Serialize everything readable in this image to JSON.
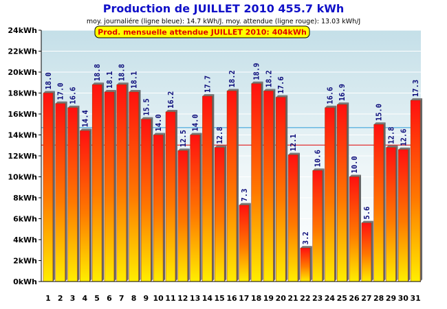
{
  "chart_data": {
    "type": "bar",
    "title": "Production de JUILLET 2010  455.7 kWh",
    "subtitle": "moy. journaliére (ligne bleue): 14.7 kWh/J.   moy. attendue (ligne rouge): 13.03 kWh/J",
    "annotation": "Prod. mensuelle attendue JUILLET 2010: 404kWh",
    "categories": [
      "1",
      "2",
      "3",
      "4",
      "5",
      "6",
      "7",
      "8",
      "9",
      "10",
      "11",
      "12",
      "13",
      "14",
      "15",
      "16",
      "17",
      "18",
      "19",
      "20",
      "21",
      "22",
      "23",
      "24",
      "25",
      "26",
      "27",
      "28",
      "29",
      "30",
      "31"
    ],
    "values": [
      18.0,
      17.0,
      16.6,
      14.4,
      18.8,
      18.1,
      18.8,
      18.1,
      15.5,
      14.0,
      16.2,
      12.5,
      14.0,
      17.7,
      12.8,
      18.2,
      7.3,
      18.9,
      18.2,
      17.6,
      12.1,
      3.2,
      10.6,
      16.6,
      16.9,
      10.0,
      5.6,
      15.0,
      12.8,
      12.6,
      17.3
    ],
    "value_labels": [
      "18.0",
      "17.0",
      "16.6",
      "14.4",
      "18.8",
      "18.1",
      "18.8",
      "18.1",
      "15.5",
      "14.0",
      "16.2",
      "12.5",
      "14.0",
      "17.7",
      "12.8",
      "18.2",
      "7.3",
      "18.9",
      "18.2",
      "17.6",
      "12.1",
      "3.2",
      "10.6",
      "16.6",
      "16.9",
      "10.0",
      "5.6",
      "15.0",
      "12.8",
      "12.6",
      "17.3"
    ],
    "y_ticks": [
      "0kWh",
      "2kWh",
      "4kWh",
      "6kWh",
      "8kWh",
      "10kWh",
      "12kWh",
      "14kWh",
      "16kWh",
      "18kWh",
      "20kWh",
      "22kWh",
      "24kWh"
    ],
    "ylim": [
      0,
      24
    ],
    "reference_lines": [
      {
        "value": 14.7,
        "color": "#2a9ad8"
      },
      {
        "value": 13.03,
        "color": "#e00000"
      }
    ],
    "grid": true,
    "colors": {
      "title": "#1010c8",
      "bar_top": "#ff1010",
      "bar_bottom": "#ffee00",
      "annotation_bg": "#ffff00",
      "annotation_text": "#e00000"
    }
  }
}
